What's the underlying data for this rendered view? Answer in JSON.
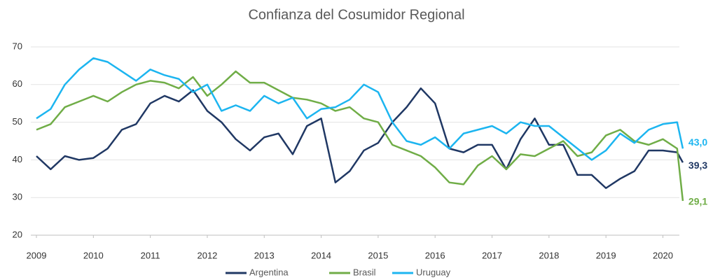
{
  "chart_data": {
    "type": "line",
    "title": "Confianza del Cosumidor Regional",
    "x": [
      2009,
      2009.25,
      2009.5,
      2009.75,
      2010,
      2010.25,
      2010.5,
      2010.75,
      2011,
      2011.25,
      2011.5,
      2011.75,
      2012,
      2012.25,
      2012.5,
      2012.75,
      2013,
      2013.25,
      2013.5,
      2013.75,
      2014,
      2014.25,
      2014.5,
      2014.75,
      2015,
      2015.25,
      2015.5,
      2015.75,
      2016,
      2016.25,
      2016.5,
      2016.75,
      2017,
      2017.25,
      2017.5,
      2017.75,
      2018,
      2018.25,
      2018.5,
      2018.75,
      2019,
      2019.25,
      2019.5,
      2019.75,
      2020,
      2020.25,
      2020.35
    ],
    "series": [
      {
        "name": "Argentina",
        "color": "#203864",
        "values": [
          41,
          37.5,
          41,
          40,
          40.5,
          43,
          48,
          49.5,
          55,
          57,
          55.5,
          58.5,
          53,
          50,
          45.5,
          42.5,
          46,
          47,
          41.5,
          49,
          51,
          34,
          37,
          42.5,
          44.5,
          50,
          54,
          59,
          55,
          43,
          42,
          44,
          44,
          37.5,
          45.5,
          51,
          44,
          44,
          36,
          36,
          32.5,
          35,
          37,
          42.5,
          42.5,
          42,
          39.3
        ],
        "value_labels": [
          null,
          null,
          null,
          null,
          null,
          null,
          null,
          null,
          null,
          null,
          null,
          null,
          null,
          null,
          null,
          null,
          null,
          null,
          null,
          null,
          null,
          null,
          null,
          null,
          null,
          null,
          null,
          null,
          null,
          null,
          null,
          null,
          null,
          null,
          null,
          null,
          null,
          null,
          null,
          null,
          null,
          null,
          null,
          null,
          null,
          null,
          "39,3"
        ]
      },
      {
        "name": "Brasil",
        "color": "#70ad47",
        "values": [
          48,
          49.5,
          54,
          55.5,
          57,
          55.5,
          58,
          60,
          61,
          60.5,
          59,
          62,
          57,
          60,
          63.5,
          60.5,
          60.5,
          58.5,
          56.5,
          56,
          55,
          53,
          54,
          51,
          50,
          44,
          42.5,
          41,
          38,
          34,
          33.5,
          38.5,
          41,
          37.5,
          41.5,
          41,
          43,
          45,
          41,
          42,
          46.5,
          48,
          45,
          44,
          45.5,
          43,
          29.1
        ],
        "value_labels": [
          null,
          null,
          null,
          null,
          null,
          null,
          null,
          null,
          null,
          null,
          null,
          null,
          null,
          null,
          null,
          null,
          null,
          null,
          null,
          null,
          null,
          null,
          null,
          null,
          null,
          null,
          null,
          null,
          null,
          null,
          null,
          null,
          null,
          null,
          null,
          null,
          null,
          null,
          null,
          null,
          null,
          null,
          null,
          null,
          null,
          null,
          "29,1"
        ]
      },
      {
        "name": "Uruguay",
        "color": "#1cb5f0",
        "values": [
          51,
          53.5,
          60,
          64,
          67,
          66,
          63.5,
          61,
          64,
          62.5,
          61.5,
          58,
          60,
          53,
          54.5,
          53,
          57,
          55,
          56.5,
          51,
          53.5,
          54,
          56,
          60,
          58,
          50,
          45,
          44,
          46,
          43,
          47,
          48,
          49,
          47,
          50,
          49,
          49,
          46,
          43,
          40,
          42.5,
          47,
          44.5,
          48,
          49.5,
          50,
          43.0
        ],
        "value_labels": [
          null,
          null,
          null,
          null,
          null,
          null,
          null,
          null,
          null,
          null,
          null,
          null,
          null,
          null,
          null,
          null,
          null,
          null,
          null,
          null,
          null,
          null,
          null,
          null,
          null,
          null,
          null,
          null,
          null,
          null,
          null,
          null,
          null,
          null,
          null,
          null,
          null,
          null,
          null,
          null,
          null,
          null,
          null,
          null,
          null,
          null,
          "43,0"
        ]
      }
    ],
    "xlim": [
      2009,
      2020.4
    ],
    "xticks": [
      2009,
      2010,
      2011,
      2012,
      2013,
      2014,
      2015,
      2016,
      2017,
      2018,
      2019,
      2020
    ],
    "ylim": [
      20,
      70
    ],
    "yticks": [
      20,
      30,
      40,
      50,
      60,
      70
    ],
    "grid": true,
    "legend": "bottom"
  }
}
